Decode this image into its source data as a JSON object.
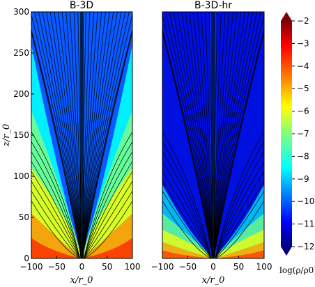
{
  "chart_data": [
    {
      "type": "heatmap",
      "title": "B-3D",
      "xlabel": "x/r_0",
      "ylabel": "z/r_0",
      "xlim": [
        -100,
        100
      ],
      "ylim": [
        0,
        300
      ],
      "xticks": [
        "−100",
        "−50",
        "0",
        "50",
        "100"
      ],
      "yticks": [
        "0",
        "50",
        "100",
        "150",
        "200",
        "250",
        "300"
      ],
      "overlay": "streamlines",
      "colormap": "jet"
    },
    {
      "type": "heatmap",
      "title": "B-3D-hr",
      "xlabel": "x/r_0",
      "xlim": [
        -100,
        100
      ],
      "ylim": [
        0,
        300
      ],
      "xticks": [
        "−100",
        "−50",
        "0",
        "50",
        "100"
      ],
      "overlay": "streamlines",
      "colormap": "jet"
    }
  ],
  "colorbar": {
    "label": "log(ρ/ρ0)",
    "range": [
      -12,
      -2
    ],
    "ticks": [
      "−2",
      "−3",
      "−4",
      "−5",
      "−6",
      "−7",
      "−8",
      "−9",
      "−10",
      "−11",
      "−12"
    ]
  },
  "colors": {
    "jet": [
      "#00007f",
      "#0000ff",
      "#007fff",
      "#00ffff",
      "#7fff7f",
      "#ffff00",
      "#ff7f00",
      "#ff0000",
      "#7f0000"
    ]
  }
}
